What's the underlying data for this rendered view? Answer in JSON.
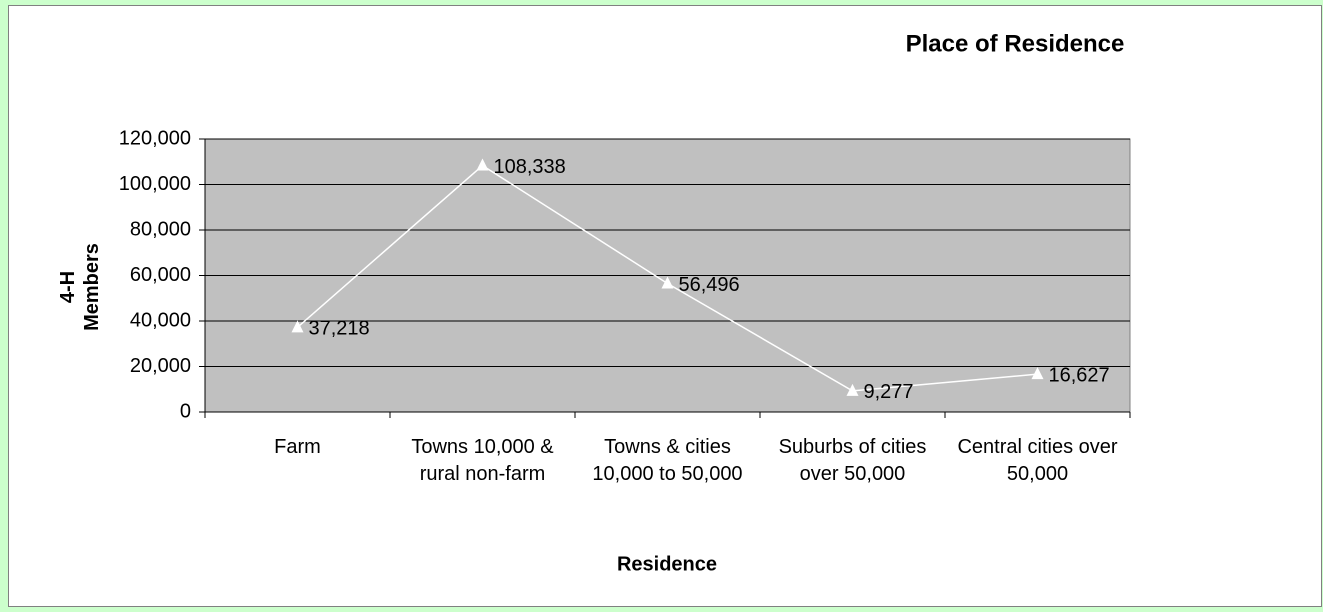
{
  "chart_data": {
    "type": "line",
    "title": "Place of Residence",
    "x_label": "Residence",
    "y_label": "4-H Members",
    "categories": [
      "Farm",
      "Towns 10,000 & rural non-farm",
      "Towns & cities 10,000 to 50,000",
      "Suburbs of cities over 50,000",
      "Central cities over 50,000"
    ],
    "series": [
      {
        "name": "4-H Members",
        "color": "#ffffff",
        "values": [
          37218,
          108338,
          56496,
          9277,
          16627
        ],
        "value_labels": [
          "37,218",
          "108,338",
          "56,496",
          "9,277",
          "16,627"
        ]
      }
    ],
    "ylim": [
      0,
      120000
    ],
    "yticks": [
      0,
      {
        "value": 20000,
        "label": "20,000"
      },
      {
        "value": 40000,
        "label": "40,000"
      },
      {
        "value": 60000,
        "label": "60,000"
      },
      {
        "value": 80000,
        "label": "80,000"
      },
      {
        "value": 100000,
        "label": "100,000"
      },
      {
        "value": 120000,
        "label": "120,000"
      }
    ],
    "grid": true,
    "plot_background": "#c0c0c0"
  }
}
